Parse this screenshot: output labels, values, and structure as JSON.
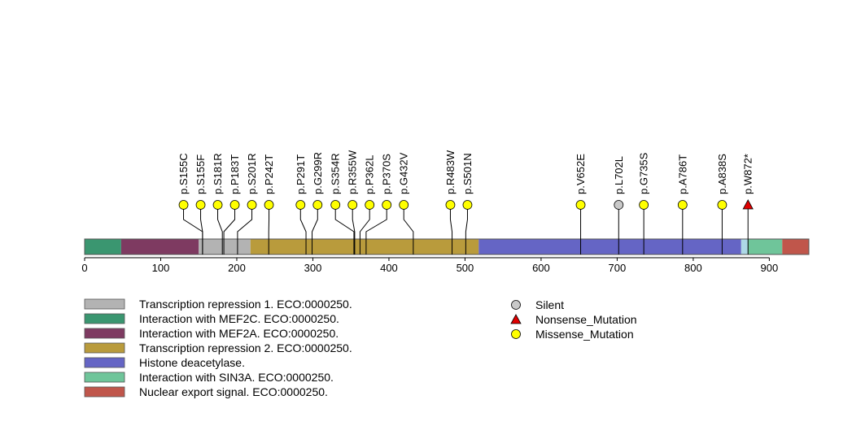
{
  "chart_data": {
    "type": "lollipop",
    "protein_length": 952,
    "xlim": [
      0,
      952
    ],
    "ticks": [
      0,
      100,
      200,
      300,
      400,
      500,
      600,
      700,
      800,
      900
    ],
    "tick_labels": [
      "0",
      "100",
      "200",
      "300",
      "400",
      "500",
      "600",
      "700",
      "800",
      "900"
    ],
    "domains": [
      {
        "name": "Interaction with MEF2C. ECO:0000250.",
        "start": 0,
        "end": 48,
        "color": "#3a9670"
      },
      {
        "name": "Interaction with MEF2A. ECO:0000250.",
        "start": 48,
        "end": 150,
        "color": "#7e3a61"
      },
      {
        "name": "Transcription repression 1. ECO:0000250.",
        "start": 150,
        "end": 218,
        "color": "#b3b3b3"
      },
      {
        "name": "Transcription repression 2. ECO:0000250.",
        "start": 218,
        "end": 518,
        "color": "#b99b3c"
      },
      {
        "name": "Histone deacetylase.",
        "start": 518,
        "end": 863,
        "color": "#6565c5"
      },
      {
        "name": "",
        "start": 863,
        "end": 872,
        "color": "#add8e6"
      },
      {
        "name": "Interaction with SIN3A. ECO:0000250.",
        "start": 872,
        "end": 917,
        "color": "#6fc59a"
      },
      {
        "name": "Nuclear export signal. ECO:0000250.",
        "start": 917,
        "end": 952,
        "color": "#c0564b"
      }
    ],
    "mutations": [
      {
        "label": "p.S155C",
        "position": 155,
        "type": "Missense_Mutation"
      },
      {
        "label": "p.S155F",
        "position": 155,
        "type": "Missense_Mutation"
      },
      {
        "label": "p.S181R",
        "position": 181,
        "type": "Missense_Mutation"
      },
      {
        "label": "p.P183T",
        "position": 183,
        "type": "Missense_Mutation"
      },
      {
        "label": "p.S201R",
        "position": 201,
        "type": "Missense_Mutation"
      },
      {
        "label": "p.P242T",
        "position": 242,
        "type": "Missense_Mutation"
      },
      {
        "label": "p.P291T",
        "position": 291,
        "type": "Missense_Mutation"
      },
      {
        "label": "p.G299R",
        "position": 299,
        "type": "Missense_Mutation"
      },
      {
        "label": "p.S354R",
        "position": 354,
        "type": "Missense_Mutation"
      },
      {
        "label": "p.R355W",
        "position": 355,
        "type": "Missense_Mutation"
      },
      {
        "label": "p.P362L",
        "position": 362,
        "type": "Missense_Mutation"
      },
      {
        "label": "p.P370S",
        "position": 370,
        "type": "Missense_Mutation"
      },
      {
        "label": "p.G432V",
        "position": 432,
        "type": "Missense_Mutation"
      },
      {
        "label": "p.R483W",
        "position": 483,
        "type": "Missense_Mutation"
      },
      {
        "label": "p.S501N",
        "position": 501,
        "type": "Missense_Mutation"
      },
      {
        "label": "p.V652E",
        "position": 652,
        "type": "Missense_Mutation"
      },
      {
        "label": "p.L702L",
        "position": 702,
        "type": "Silent"
      },
      {
        "label": "p.G735S",
        "position": 735,
        "type": "Missense_Mutation"
      },
      {
        "label": "p.A786T",
        "position": 786,
        "type": "Missense_Mutation"
      },
      {
        "label": "p.A838S",
        "position": 838,
        "type": "Missense_Mutation"
      },
      {
        "label": "p.W872*",
        "position": 872,
        "type": "Nonsense_Mutation"
      }
    ],
    "domain_legend": [
      {
        "name": "Transcription repression 1. ECO:0000250.",
        "color": "#b3b3b3"
      },
      {
        "name": "Interaction with MEF2C. ECO:0000250.",
        "color": "#3a9670"
      },
      {
        "name": "Interaction with MEF2A. ECO:0000250.",
        "color": "#7e3a61"
      },
      {
        "name": "Transcription repression 2. ECO:0000250.",
        "color": "#b99b3c"
      },
      {
        "name": "Histone deacetylase.",
        "color": "#6565c5"
      },
      {
        "name": "Interaction with SIN3A. ECO:0000250.",
        "color": "#6fc59a"
      },
      {
        "name": "Nuclear export signal. ECO:0000250.",
        "color": "#c0564b"
      }
    ],
    "mutation_legend": [
      {
        "name": "Silent",
        "shape": "circle",
        "color": "#c8c8c8"
      },
      {
        "name": "Nonsense_Mutation",
        "shape": "triangle",
        "color": "#e00000"
      },
      {
        "name": "Missense_Mutation",
        "shape": "circle",
        "color": "#ffff00"
      }
    ],
    "grid": false
  }
}
